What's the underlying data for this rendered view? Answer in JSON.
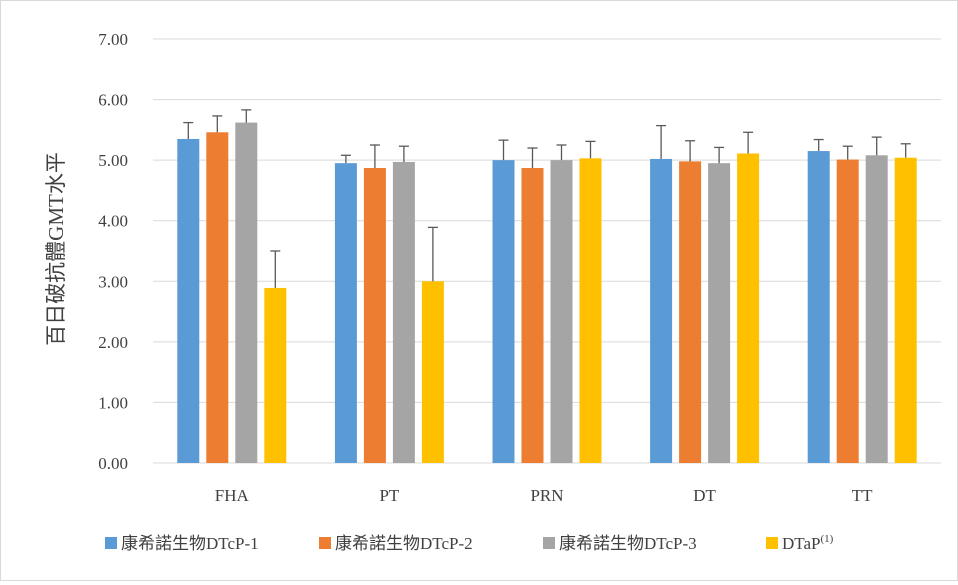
{
  "chart_data": {
    "type": "bar",
    "ylabel": "百日破抗體GMT水平",
    "xlabel": "",
    "ylim": [
      0,
      7
    ],
    "yticks": [
      "0.00",
      "1.00",
      "2.00",
      "3.00",
      "4.00",
      "5.00",
      "6.00",
      "7.00"
    ],
    "grid": true,
    "legend_position": "bottom",
    "categories": [
      "FHA",
      "PT",
      "PRN",
      "DT",
      "TT"
    ],
    "series": [
      {
        "name": "康希諾生物DTcP-1",
        "color": "#5B9BD5",
        "values": [
          5.35,
          4.95,
          5.0,
          5.02,
          5.15
        ],
        "error": [
          0.27,
          0.13,
          0.33,
          0.55,
          0.19
        ]
      },
      {
        "name": "康希諾生物DTcP-2",
        "color": "#ED7D31",
        "values": [
          5.46,
          4.87,
          4.87,
          4.98,
          5.01
        ],
        "error": [
          0.27,
          0.38,
          0.33,
          0.34,
          0.22
        ]
      },
      {
        "name": "康希諾生物DTcP-3",
        "color": "#A5A5A5",
        "values": [
          5.62,
          4.97,
          5.0,
          4.95,
          5.08
        ],
        "error": [
          0.21,
          0.26,
          0.25,
          0.26,
          0.3
        ]
      },
      {
        "name": "DTaP",
        "name_sup": "(1)",
        "color": "#FFC000",
        "values": [
          2.89,
          3.0,
          5.03,
          5.11,
          5.04
        ],
        "error": [
          0.61,
          0.89,
          0.28,
          0.35,
          0.23
        ]
      }
    ]
  }
}
